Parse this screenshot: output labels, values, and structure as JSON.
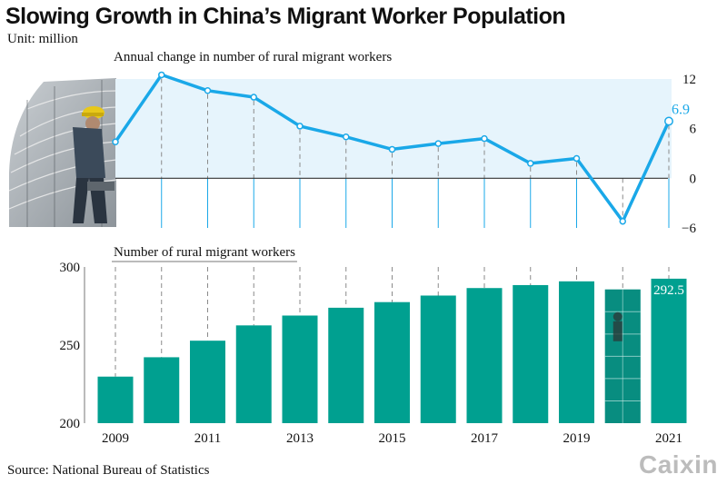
{
  "title": "Slowing Growth in China’s Migrant Worker Population",
  "unit": "Unit: million",
  "source": "Source: National Bureau of Statistics",
  "logo": "Caixin",
  "colors": {
    "line": "#1aa8e8",
    "line_band": "#e6f4fc",
    "bar": "#00a090",
    "axis": "#333333",
    "guide": "#8a8a8a"
  },
  "chart_data": [
    {
      "type": "line",
      "title": "Annual change in number of rural migrant workers",
      "x": [
        2009,
        2010,
        2011,
        2012,
        2013,
        2014,
        2015,
        2016,
        2017,
        2018,
        2019,
        2020,
        2021
      ],
      "series": [
        {
          "values": [
            4.4,
            12.5,
            10.6,
            9.8,
            6.3,
            5.0,
            3.5,
            4.2,
            4.8,
            1.8,
            2.4,
            -5.2,
            6.9
          ]
        }
      ],
      "annotations": [
        {
          "x": 2021,
          "text": "6.9"
        }
      ],
      "ylim": [
        -6,
        12
      ],
      "yticks": [
        12,
        6,
        0,
        -6
      ],
      "ytick_labels": [
        "12",
        "6",
        "0",
        "−6"
      ],
      "axis_side": "right",
      "grid": false
    },
    {
      "type": "bar",
      "title": "Number of rural migrant workers",
      "x": [
        2009,
        2010,
        2011,
        2012,
        2013,
        2014,
        2015,
        2016,
        2017,
        2018,
        2019,
        2020,
        2021
      ],
      "values": [
        229.8,
        242.2,
        252.8,
        262.6,
        268.9,
        273.9,
        277.5,
        281.7,
        286.5,
        288.4,
        290.8,
        285.6,
        292.5
      ],
      "annotations": [
        {
          "x": 2021,
          "text": "292.5"
        }
      ],
      "ylim": [
        200,
        300
      ],
      "yticks": [
        300,
        250,
        200
      ],
      "xticks": [
        2009,
        2011,
        2013,
        2015,
        2017,
        2019,
        2021
      ],
      "axis_side": "left",
      "grid": false
    }
  ]
}
